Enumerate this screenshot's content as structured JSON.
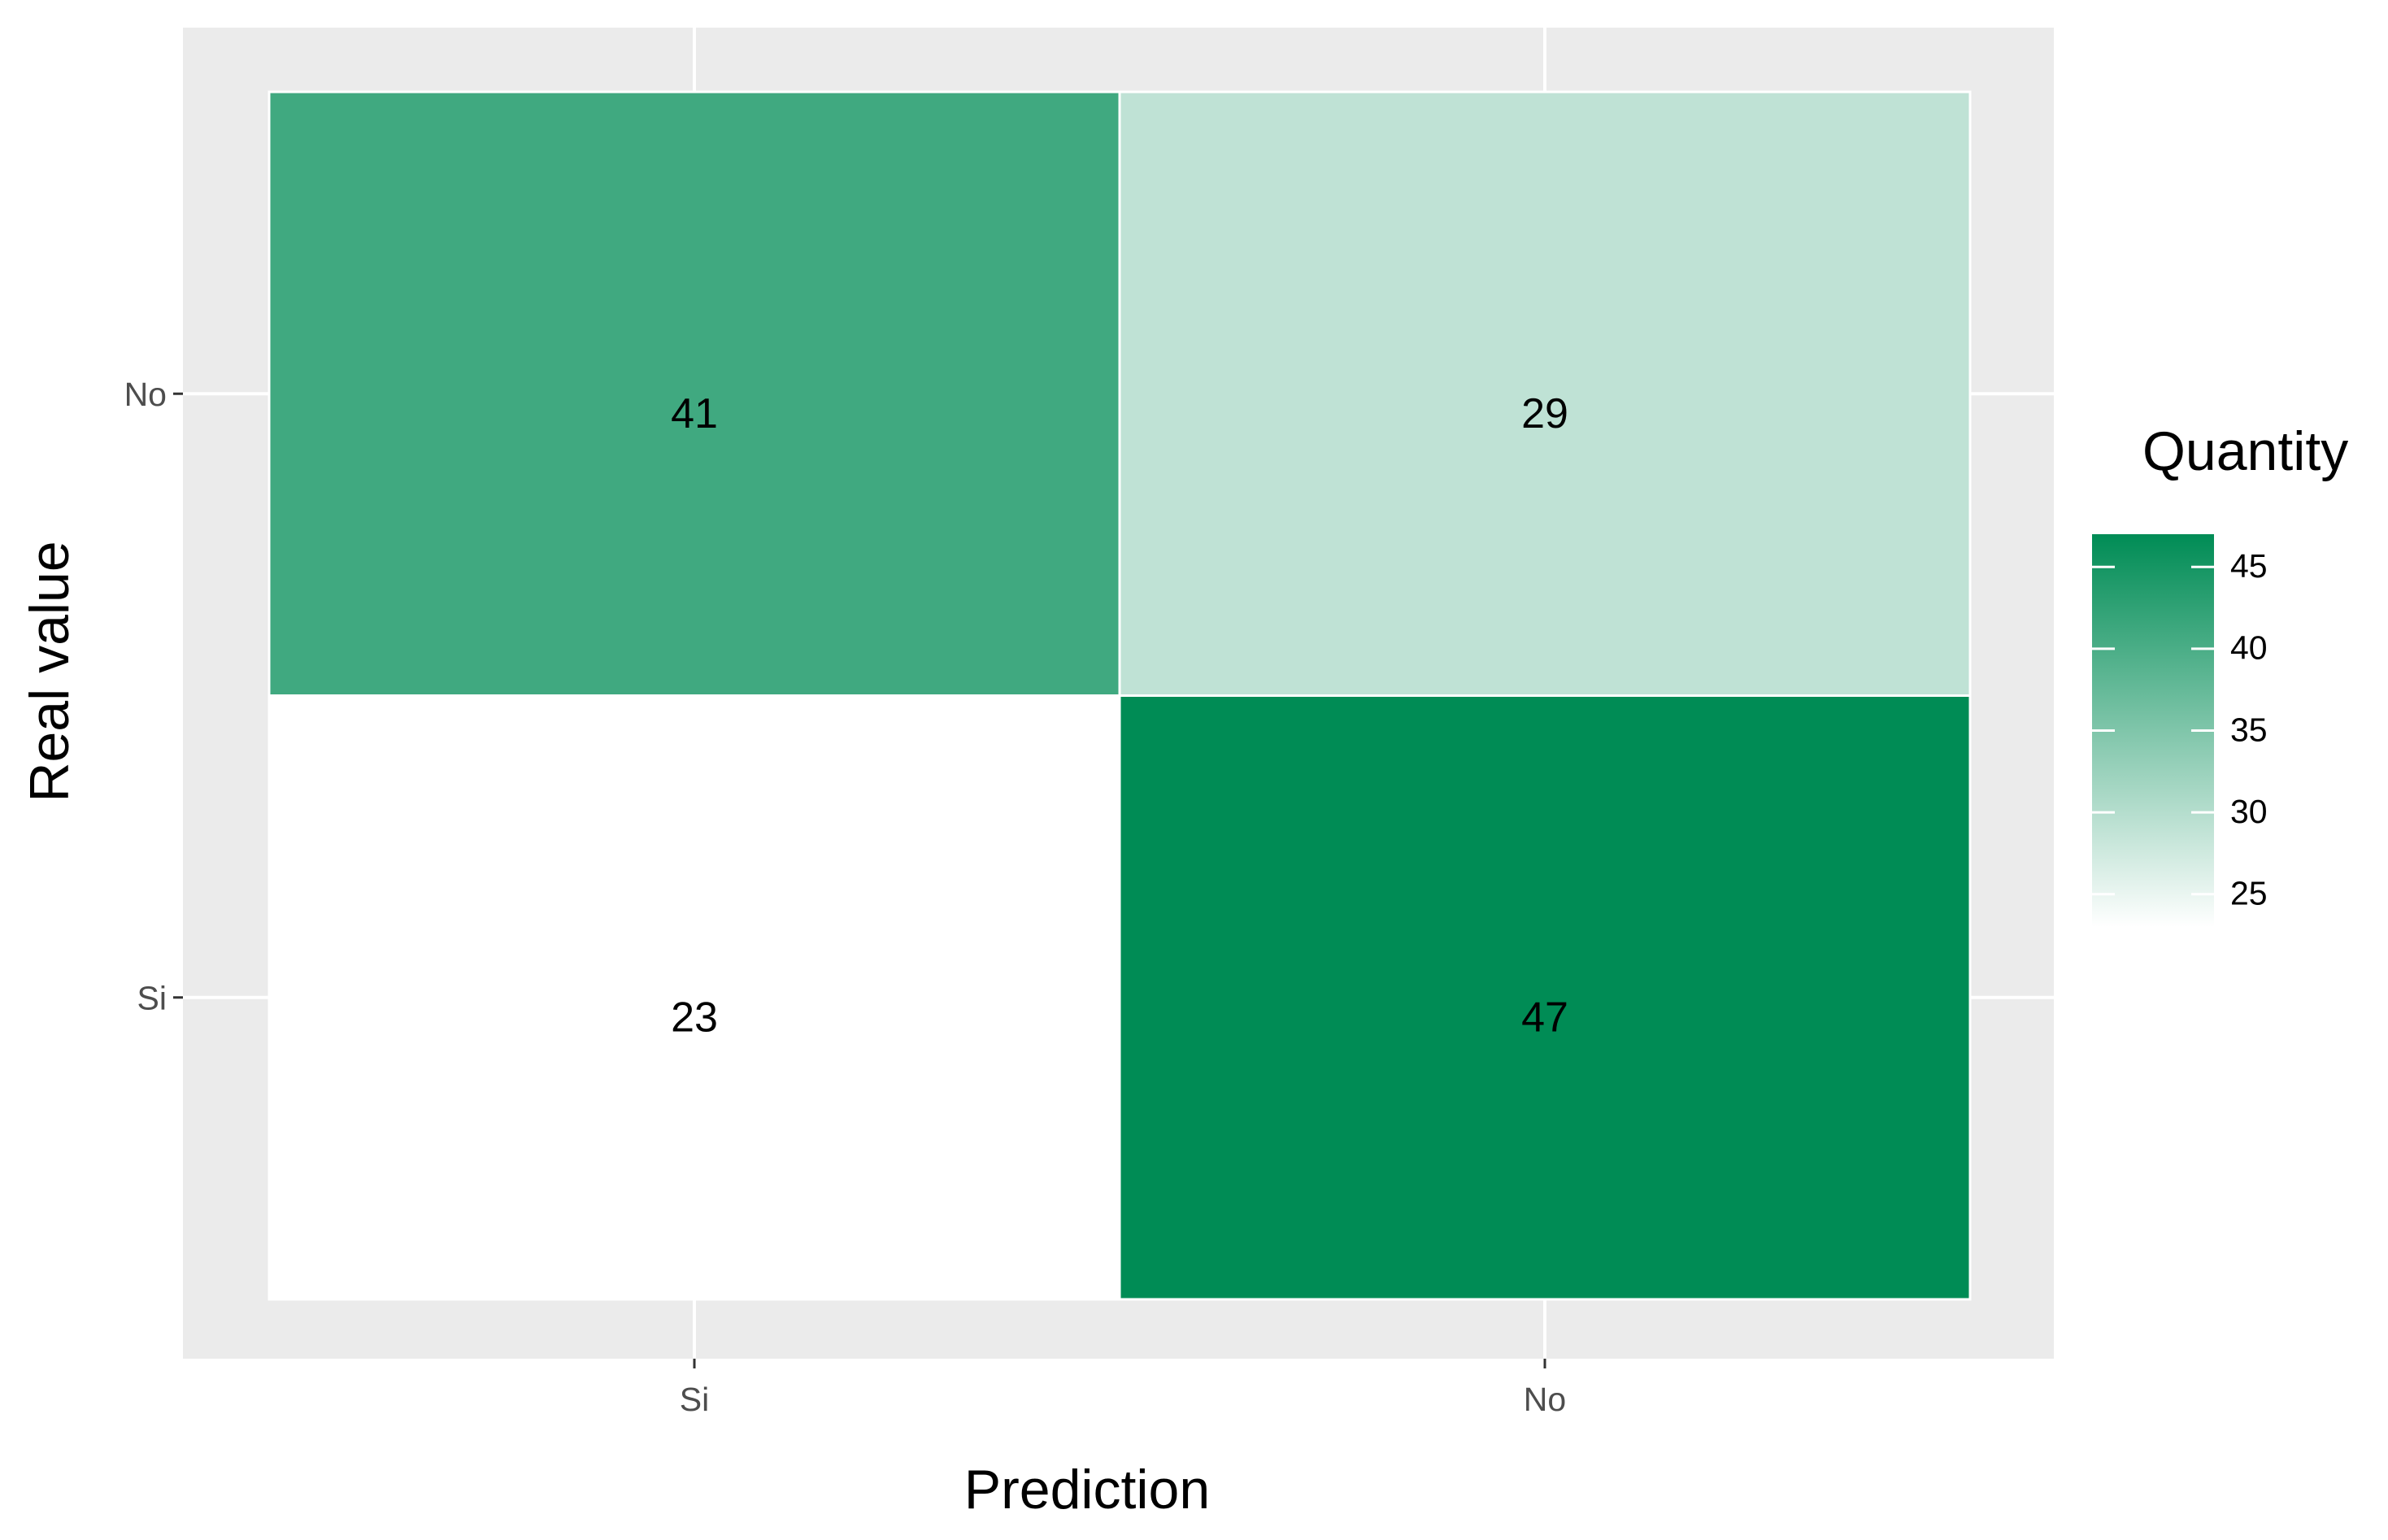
{
  "chart_data": {
    "type": "heatmap",
    "x_label": "Prediction",
    "y_label": "Real value",
    "x_categories": [
      "Si",
      "No"
    ],
    "y_categories": [
      "No",
      "Si"
    ],
    "values": [
      [
        41,
        29
      ],
      [
        23,
        47
      ]
    ],
    "legend_title": "Quantity",
    "colorbar_ticks": [
      25,
      30,
      35,
      40,
      45
    ],
    "low_color": "#ffffff",
    "high_color": "#008c55",
    "grid": true
  }
}
